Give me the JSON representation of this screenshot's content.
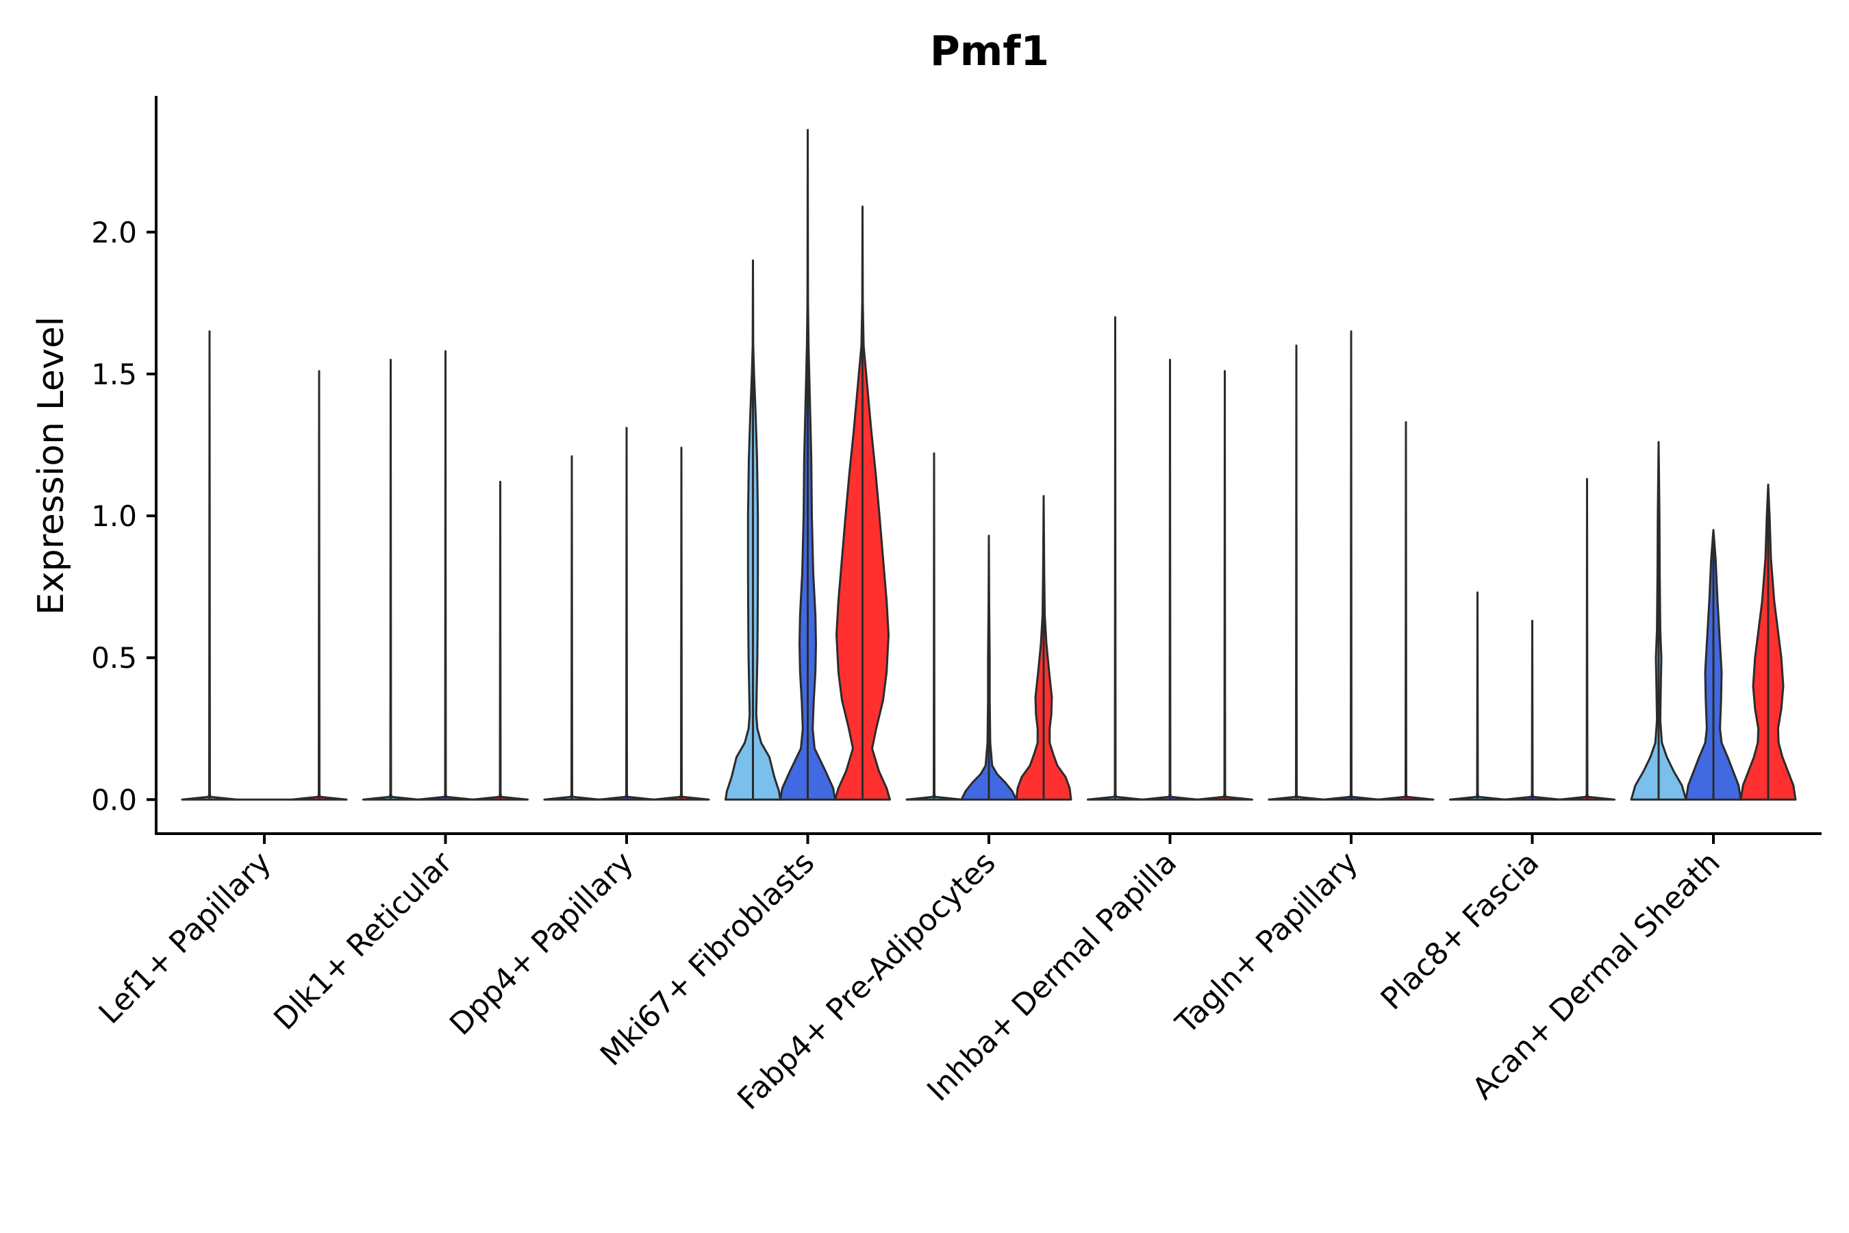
{
  "chart_data": {
    "type": "violin",
    "title": "Pmf1",
    "xlabel": "",
    "ylabel": "Expression Level",
    "ylim": [
      -0.12,
      2.48
    ],
    "yticks": [
      0.0,
      0.5,
      1.0,
      1.5,
      2.0
    ],
    "ytick_labels": [
      "0.0",
      "0.5",
      "1.0",
      "1.5",
      "2.0"
    ],
    "grid": false,
    "legend": "none",
    "group_colors": [
      "#7bbfec",
      "#4169e1",
      "#ff3030"
    ],
    "categories": [
      "Lef1+ Papillary",
      "Dlk1+ Reticular",
      "Dpp4+ Papillary",
      "Mki67+ Fibroblasts",
      "Fabp4+ Pre-Adipocytes",
      "Inhba+ Dermal Papilla",
      "Tagln+ Papillary",
      "Plac8+ Fascia",
      "Acan+ Dermal Sheath"
    ],
    "violins": [
      {
        "category": "Lef1+ Papillary",
        "group": 1,
        "max": 1.65,
        "profile": []
      },
      {
        "category": "Lef1+ Papillary",
        "group": 2,
        "max": 0.0,
        "profile": []
      },
      {
        "category": "Lef1+ Papillary",
        "group": 3,
        "max": 1.51,
        "profile": []
      },
      {
        "category": "Dlk1+ Reticular",
        "group": 1,
        "max": 1.55,
        "profile": []
      },
      {
        "category": "Dlk1+ Reticular",
        "group": 2,
        "max": 1.58,
        "profile": []
      },
      {
        "category": "Dlk1+ Reticular",
        "group": 3,
        "max": 1.12,
        "profile": []
      },
      {
        "category": "Dpp4+ Papillary",
        "group": 1,
        "max": 1.21,
        "profile": []
      },
      {
        "category": "Dpp4+ Papillary",
        "group": 2,
        "max": 1.31,
        "profile": []
      },
      {
        "category": "Dpp4+ Papillary",
        "group": 3,
        "max": 1.24,
        "profile": []
      },
      {
        "category": "Mki67+ Fibroblasts",
        "group": 1,
        "max": 1.9,
        "profile": [
          [
            0,
            1
          ],
          [
            0.03,
            0.95
          ],
          [
            0.08,
            0.78
          ],
          [
            0.15,
            0.6
          ],
          [
            0.2,
            0.3
          ],
          [
            0.25,
            0.16
          ],
          [
            0.3,
            0.12
          ],
          [
            0.4,
            0.14
          ],
          [
            0.5,
            0.16
          ],
          [
            0.6,
            0.17
          ],
          [
            0.8,
            0.18
          ],
          [
            1.0,
            0.18
          ],
          [
            1.2,
            0.15
          ],
          [
            1.35,
            0.1
          ],
          [
            1.5,
            0.04
          ],
          [
            1.6,
            0.01
          ],
          [
            1.9,
            0
          ]
        ]
      },
      {
        "category": "Mki67+ Fibroblasts",
        "group": 2,
        "max": 2.36,
        "profile": [
          [
            0,
            1
          ],
          [
            0.04,
            0.93
          ],
          [
            0.1,
            0.65
          ],
          [
            0.18,
            0.25
          ],
          [
            0.25,
            0.18
          ],
          [
            0.35,
            0.22
          ],
          [
            0.45,
            0.28
          ],
          [
            0.55,
            0.3
          ],
          [
            0.65,
            0.28
          ],
          [
            0.8,
            0.2
          ],
          [
            1.0,
            0.15
          ],
          [
            1.2,
            0.13
          ],
          [
            1.4,
            0.08
          ],
          [
            1.6,
            0.03
          ],
          [
            1.75,
            0.01
          ],
          [
            2.36,
            0
          ]
        ]
      },
      {
        "category": "Mki67+ Fibroblasts",
        "group": 3,
        "max": 2.09,
        "profile": [
          [
            0,
            1
          ],
          [
            0.04,
            0.88
          ],
          [
            0.1,
            0.6
          ],
          [
            0.18,
            0.35
          ],
          [
            0.25,
            0.5
          ],
          [
            0.35,
            0.75
          ],
          [
            0.45,
            0.88
          ],
          [
            0.58,
            0.95
          ],
          [
            0.7,
            0.88
          ],
          [
            0.85,
            0.75
          ],
          [
            1.0,
            0.62
          ],
          [
            1.15,
            0.48
          ],
          [
            1.3,
            0.32
          ],
          [
            1.45,
            0.18
          ],
          [
            1.6,
            0.04
          ],
          [
            1.75,
            0.01
          ],
          [
            2.09,
            0
          ]
        ]
      },
      {
        "category": "Fabp4+ Pre-Adipocytes",
        "group": 1,
        "max": 1.22,
        "profile": []
      },
      {
        "category": "Fabp4+ Pre-Adipocytes",
        "group": 2,
        "max": 0.93,
        "profile": [
          [
            0,
            1
          ],
          [
            0.03,
            0.85
          ],
          [
            0.06,
            0.6
          ],
          [
            0.09,
            0.3
          ],
          [
            0.12,
            0.12
          ],
          [
            0.2,
            0.05
          ],
          [
            0.35,
            0.03
          ],
          [
            0.5,
            0.03
          ],
          [
            0.6,
            0.02
          ],
          [
            0.7,
            0.01
          ],
          [
            0.93,
            0
          ]
        ]
      },
      {
        "category": "Fabp4+ Pre-Adipocytes",
        "group": 3,
        "max": 1.07,
        "profile": [
          [
            0,
            1
          ],
          [
            0.04,
            0.95
          ],
          [
            0.08,
            0.8
          ],
          [
            0.12,
            0.5
          ],
          [
            0.16,
            0.35
          ],
          [
            0.2,
            0.22
          ],
          [
            0.25,
            0.22
          ],
          [
            0.3,
            0.28
          ],
          [
            0.36,
            0.3
          ],
          [
            0.45,
            0.2
          ],
          [
            0.55,
            0.1
          ],
          [
            0.65,
            0.04
          ],
          [
            0.8,
            0.02
          ],
          [
            1.07,
            0
          ]
        ]
      },
      {
        "category": "Inhba+ Dermal Papilla",
        "group": 1,
        "max": 1.7,
        "profile": []
      },
      {
        "category": "Inhba+ Dermal Papilla",
        "group": 2,
        "max": 1.55,
        "profile": []
      },
      {
        "category": "Inhba+ Dermal Papilla",
        "group": 3,
        "max": 1.51,
        "profile": []
      },
      {
        "category": "Tagln+ Papillary",
        "group": 1,
        "max": 1.6,
        "profile": []
      },
      {
        "category": "Tagln+ Papillary",
        "group": 2,
        "max": 1.65,
        "profile": []
      },
      {
        "category": "Tagln+ Papillary",
        "group": 3,
        "max": 1.33,
        "profile": []
      },
      {
        "category": "Plac8+ Fascia",
        "group": 1,
        "max": 0.73,
        "profile": []
      },
      {
        "category": "Plac8+ Fascia",
        "group": 2,
        "max": 0.63,
        "profile": []
      },
      {
        "category": "Plac8+ Fascia",
        "group": 3,
        "max": 1.13,
        "profile": []
      },
      {
        "category": "Acan+ Dermal Sheath",
        "group": 1,
        "max": 1.26,
        "profile": [
          [
            0,
            1
          ],
          [
            0.05,
            0.85
          ],
          [
            0.1,
            0.55
          ],
          [
            0.15,
            0.3
          ],
          [
            0.2,
            0.12
          ],
          [
            0.28,
            0.06
          ],
          [
            0.4,
            0.08
          ],
          [
            0.5,
            0.1
          ],
          [
            0.6,
            0.06
          ],
          [
            0.8,
            0.04
          ],
          [
            1.0,
            0.03
          ],
          [
            1.26,
            0
          ]
        ]
      },
      {
        "category": "Acan+ Dermal Sheath",
        "group": 2,
        "max": 0.95,
        "profile": [
          [
            0,
            1
          ],
          [
            0.05,
            0.92
          ],
          [
            0.1,
            0.72
          ],
          [
            0.15,
            0.52
          ],
          [
            0.2,
            0.3
          ],
          [
            0.25,
            0.24
          ],
          [
            0.35,
            0.28
          ],
          [
            0.45,
            0.3
          ],
          [
            0.55,
            0.24
          ],
          [
            0.7,
            0.15
          ],
          [
            0.85,
            0.08
          ],
          [
            0.95,
            0
          ]
        ]
      },
      {
        "category": "Acan+ Dermal Sheath",
        "group": 3,
        "max": 1.11,
        "profile": [
          [
            0,
            1
          ],
          [
            0.05,
            0.92
          ],
          [
            0.1,
            0.72
          ],
          [
            0.15,
            0.52
          ],
          [
            0.2,
            0.38
          ],
          [
            0.25,
            0.36
          ],
          [
            0.32,
            0.48
          ],
          [
            0.4,
            0.55
          ],
          [
            0.5,
            0.48
          ],
          [
            0.6,
            0.35
          ],
          [
            0.7,
            0.22
          ],
          [
            0.85,
            0.1
          ],
          [
            1.0,
            0.05
          ],
          [
            1.11,
            0
          ]
        ]
      }
    ]
  }
}
